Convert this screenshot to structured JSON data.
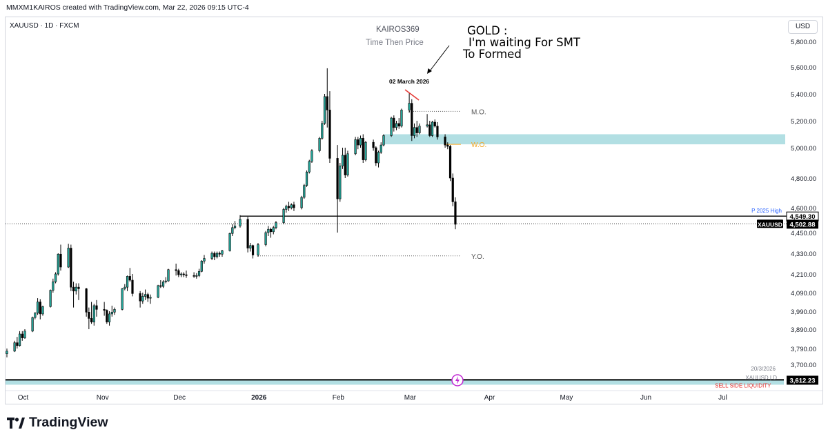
{
  "header": {
    "text": "MMXM1KAIROS created with TradingView.com, Mar 22, 2026 09:15 UTC-4"
  },
  "symbol_line": "XAUUSD · 1D · FXCM",
  "currency_button": "USD",
  "annotation": {
    "title": "KAIROS369",
    "subtitle": "Time Then Price",
    "note_line1": "GOLD :",
    "note_line2": "I'm waiting For SMT",
    "note_line3": "To Formed",
    "date_label": "02 March 2026"
  },
  "levels": {
    "mo": "M.O.",
    "wo": "W.O.",
    "yo": "Y.O.",
    "p2025": "P 2025 High",
    "ssl": "SELL SIDE LIQUIDITY"
  },
  "price_tags": {
    "p2025_value": "4,549.30",
    "xau_label": "XAUUSD",
    "xau_value": "4,502.88",
    "ssl_value": "3,612.23"
  },
  "bottom_info": {
    "date": "20/3/2026",
    "symbol": "XAUUSD | D"
  },
  "brand": {
    "name": "TradingView"
  },
  "colors": {
    "up": "#26a69a",
    "down": "#000000",
    "ob": "#b2dfe3",
    "wo": "#f5a623",
    "p2025": "#2962ff",
    "red": "#e53935"
  },
  "chart_data": {
    "type": "candlestick",
    "title": "KAIROS369",
    "subtitle": "Time Then Price",
    "y_ticks": [
      3700,
      3790,
      3890,
      3990,
      4090,
      4210,
      4330,
      4450,
      4600,
      4800,
      5000,
      5200,
      5400,
      5600,
      5800
    ],
    "y_tick_labels": [
      "3,700.00",
      "3,790.00",
      "3,890.00",
      "3,990.00",
      "4,090.00",
      "4,210.00",
      "4,330.00",
      "4,450.00",
      "4,600.00",
      "4,800.00",
      "5,000.00",
      "5,200.00",
      "5,400.00",
      "5,600.00",
      "5,800.00"
    ],
    "x_ticks": [
      "Oct",
      "Nov",
      "Dec",
      "2026",
      "Feb",
      "Mar",
      "Apr",
      "May",
      "Jun",
      "Jul"
    ],
    "x_tick_dates": [
      "2025-10-01",
      "2025-11-01",
      "2025-12-01",
      "2026-01-01",
      "2026-02-01",
      "2026-03-01",
      "2026-04-01",
      "2026-05-01",
      "2026-06-01",
      "2026-07-01"
    ],
    "start_date": "2025-09-26",
    "levels": {
      "monthly_open": 5270,
      "weekly_open": 5025,
      "yearly_open": 4315,
      "prev_2025_high": 4549.3,
      "last_price": 4502.88,
      "sell_side_liquidity": 3612.23,
      "order_block": [
        5025,
        5100
      ]
    },
    "candles": [
      [
        "2025-09-26",
        3760,
        3790,
        3740,
        3775
      ],
      [
        "2025-09-29",
        3775,
        3830,
        3770,
        3820
      ],
      [
        "2025-09-30",
        3820,
        3850,
        3790,
        3805
      ],
      [
        "2025-10-01",
        3805,
        3880,
        3800,
        3865
      ],
      [
        "2025-10-02",
        3865,
        3880,
        3830,
        3845
      ],
      [
        "2025-10-03",
        3845,
        3890,
        3840,
        3880
      ],
      [
        "2025-10-06",
        3880,
        3960,
        3875,
        3955
      ],
      [
        "2025-10-07",
        3955,
        3985,
        3945,
        3980
      ],
      [
        "2025-10-08",
        3980,
        4060,
        3970,
        4040
      ],
      [
        "2025-10-09",
        4040,
        4055,
        3945,
        3975
      ],
      [
        "2025-10-10",
        3975,
        4020,
        3965,
        4015
      ],
      [
        "2025-10-13",
        4015,
        4110,
        4010,
        4105
      ],
      [
        "2025-10-14",
        4105,
        4180,
        4090,
        4160
      ],
      [
        "2025-10-15",
        4160,
        4220,
        4150,
        4210
      ],
      [
        "2025-10-16",
        4210,
        4330,
        4200,
        4325
      ],
      [
        "2025-10-17",
        4325,
        4380,
        4230,
        4250
      ],
      [
        "2025-10-20",
        4250,
        4385,
        4245,
        4360
      ],
      [
        "2025-10-21",
        4360,
        4380,
        4100,
        4125
      ],
      [
        "2025-10-22",
        4125,
        4160,
        4010,
        4100
      ],
      [
        "2025-10-23",
        4100,
        4150,
        4080,
        4125
      ],
      [
        "2025-10-24",
        4125,
        4150,
        4050,
        4115
      ],
      [
        "2025-10-27",
        4115,
        4120,
        3960,
        3985
      ],
      [
        "2025-10-28",
        3985,
        4010,
        3890,
        3950
      ],
      [
        "2025-10-29",
        3950,
        4040,
        3920,
        3930
      ],
      [
        "2025-10-30",
        3930,
        4030,
        3910,
        4020
      ],
      [
        "2025-10-31",
        4020,
        4050,
        3960,
        4000
      ],
      [
        "2025-11-03",
        4000,
        4040,
        3965,
        3995
      ],
      [
        "2025-11-04",
        3995,
        4000,
        3920,
        3930
      ],
      [
        "2025-11-05",
        3930,
        3990,
        3910,
        3975
      ],
      [
        "2025-11-06",
        3975,
        4020,
        3960,
        3985
      ],
      [
        "2025-11-07",
        3985,
        4010,
        3970,
        4000
      ],
      [
        "2025-11-10",
        4000,
        4120,
        3995,
        4115
      ],
      [
        "2025-11-11",
        4115,
        4145,
        4105,
        4125
      ],
      [
        "2025-11-12",
        4125,
        4200,
        4100,
        4195
      ],
      [
        "2025-11-13",
        4195,
        4245,
        4160,
        4170
      ],
      [
        "2025-11-14",
        4170,
        4210,
        4070,
        4085
      ],
      [
        "2025-11-17",
        4085,
        4100,
        4010,
        4045
      ],
      [
        "2025-11-18",
        4045,
        4090,
        4030,
        4070
      ],
      [
        "2025-11-19",
        4070,
        4110,
        4050,
        4080
      ],
      [
        "2025-11-20",
        4080,
        4090,
        4040,
        4060
      ],
      [
        "2025-11-21",
        4060,
        4080,
        4030,
        4065
      ],
      [
        "2025-11-24",
        4065,
        4140,
        4060,
        4135
      ],
      [
        "2025-11-25",
        4135,
        4170,
        4120,
        4130
      ],
      [
        "2025-11-26",
        4130,
        4170,
        4120,
        4160
      ],
      [
        "2025-11-27",
        4160,
        4190,
        4150,
        4165
      ],
      [
        "2025-11-28",
        4165,
        4240,
        4160,
        4235
      ],
      [
        "2025-12-01",
        4235,
        4270,
        4200,
        4230
      ],
      [
        "2025-12-02",
        4230,
        4240,
        4190,
        4205
      ],
      [
        "2025-12-03",
        4205,
        4220,
        4190,
        4210
      ],
      [
        "2025-12-04",
        4210,
        4220,
        4190,
        4205
      ],
      [
        "2025-12-05",
        4205,
        4230,
        4185,
        4200
      ],
      [
        "2025-12-08",
        4200,
        4220,
        4185,
        4195
      ],
      [
        "2025-12-09",
        4195,
        4215,
        4180,
        4200
      ],
      [
        "2025-12-10",
        4200,
        4240,
        4190,
        4225
      ],
      [
        "2025-12-11",
        4225,
        4290,
        4220,
        4285
      ],
      [
        "2025-12-12",
        4285,
        4320,
        4270,
        4300
      ],
      [
        "2025-12-15",
        4300,
        4340,
        4290,
        4330
      ],
      [
        "2025-12-16",
        4330,
        4340,
        4290,
        4310
      ],
      [
        "2025-12-17",
        4310,
        4340,
        4300,
        4330
      ],
      [
        "2025-12-18",
        4330,
        4340,
        4310,
        4325
      ],
      [
        "2025-12-19",
        4325,
        4350,
        4310,
        4345
      ],
      [
        "2025-12-22",
        4345,
        4450,
        4340,
        4445
      ],
      [
        "2025-12-23",
        4445,
        4500,
        4430,
        4480
      ],
      [
        "2025-12-24",
        4480,
        4520,
        4470,
        4490
      ],
      [
        "2025-12-26",
        4490,
        4555,
        4480,
        4530
      ],
      [
        "2025-12-29",
        4530,
        4545,
        4335,
        4360
      ],
      [
        "2025-12-30",
        4360,
        4390,
        4340,
        4375
      ],
      [
        "2025-12-31",
        4375,
        4380,
        4300,
        4320
      ],
      [
        "2026-01-02",
        4320,
        4390,
        4310,
        4380
      ],
      [
        "2026-01-05",
        4380,
        4460,
        4370,
        4450
      ],
      [
        "2026-01-06",
        4450,
        4490,
        4430,
        4470
      ],
      [
        "2026-01-07",
        4470,
        4480,
        4420,
        4455
      ],
      [
        "2026-01-08",
        4455,
        4490,
        4440,
        4480
      ],
      [
        "2026-01-09",
        4480,
        4520,
        4470,
        4510
      ],
      [
        "2026-01-12",
        4510,
        4600,
        4500,
        4590
      ],
      [
        "2026-01-13",
        4590,
        4620,
        4570,
        4610
      ],
      [
        "2026-01-14",
        4610,
        4640,
        4580,
        4600
      ],
      [
        "2026-01-15",
        4600,
        4630,
        4590,
        4620
      ],
      [
        "2026-01-16",
        4620,
        4640,
        4580,
        4600
      ],
      [
        "2026-01-19",
        4600,
        4680,
        4590,
        4670
      ],
      [
        "2026-01-20",
        4670,
        4760,
        4660,
        4750
      ],
      [
        "2026-01-21",
        4750,
        4850,
        4740,
        4840
      ],
      [
        "2026-01-22",
        4840,
        4920,
        4830,
        4910
      ],
      [
        "2026-01-23",
        4910,
        4990,
        4900,
        4980
      ],
      [
        "2026-01-26",
        4980,
        5080,
        4970,
        5070
      ],
      [
        "2026-01-27",
        5070,
        5200,
        5060,
        5180
      ],
      [
        "2026-01-28",
        5180,
        5400,
        5170,
        5380
      ],
      [
        "2026-01-29",
        5380,
        5590,
        5150,
        5280
      ],
      [
        "2026-01-30",
        5280,
        5420,
        4900,
        4930
      ],
      [
        "2026-02-02",
        4930,
        5020,
        4450,
        4660
      ],
      [
        "2026-02-03",
        4660,
        4900,
        4640,
        4880
      ],
      [
        "2026-02-04",
        4880,
        5000,
        4860,
        4950
      ],
      [
        "2026-02-05",
        4950,
        5000,
        4800,
        4820
      ],
      [
        "2026-02-06",
        4820,
        4980,
        4810,
        4960
      ],
      [
        "2026-02-09",
        4960,
        5080,
        4950,
        5060
      ],
      [
        "2026-02-10",
        5060,
        5080,
        4990,
        5020
      ],
      [
        "2026-02-11",
        5020,
        5090,
        5000,
        5070
      ],
      [
        "2026-02-12",
        5070,
        5100,
        4900,
        4920
      ],
      [
        "2026-02-13",
        4920,
        5050,
        4910,
        5040
      ],
      [
        "2026-02-16",
        5040,
        5060,
        4980,
        5000
      ],
      [
        "2026-02-17",
        5000,
        5010,
        4880,
        4900
      ],
      [
        "2026-02-18",
        4900,
        4980,
        4870,
        4970
      ],
      [
        "2026-02-19",
        4970,
        5040,
        4960,
        5020
      ],
      [
        "2026-02-20",
        5020,
        5100,
        5010,
        5090
      ],
      [
        "2026-02-23",
        5090,
        5230,
        5080,
        5220
      ],
      [
        "2026-02-24",
        5220,
        5240,
        5120,
        5150
      ],
      [
        "2026-02-25",
        5150,
        5200,
        5130,
        5180
      ],
      [
        "2026-02-26",
        5180,
        5220,
        5140,
        5160
      ],
      [
        "2026-02-27",
        5160,
        5290,
        5150,
        5280
      ],
      [
        "2026-03-02",
        5280,
        5410,
        5260,
        5330
      ],
      [
        "2026-03-03",
        5330,
        5360,
        5050,
        5090
      ],
      [
        "2026-03-04",
        5090,
        5180,
        5070,
        5150
      ],
      [
        "2026-03-05",
        5150,
        5200,
        5080,
        5110
      ],
      [
        "2026-03-06",
        5110,
        5180,
        5100,
        5160
      ],
      [
        "2026-03-09",
        5160,
        5250,
        5150,
        5170
      ],
      [
        "2026-03-10",
        5170,
        5200,
        5080,
        5090
      ],
      [
        "2026-03-11",
        5090,
        5200,
        5080,
        5190
      ],
      [
        "2026-03-12",
        5190,
        5210,
        5150,
        5160
      ],
      [
        "2026-03-13",
        5160,
        5190,
        5060,
        5080
      ],
      [
        "2026-03-16",
        5080,
        5100,
        5000,
        5020
      ],
      [
        "2026-03-17",
        5020,
        5040,
        4990,
        5010
      ],
      [
        "2026-03-18",
        5010,
        5020,
        4780,
        4800
      ],
      [
        "2026-03-19",
        4800,
        4830,
        4610,
        4640
      ],
      [
        "2026-03-20",
        4640,
        4670,
        4470,
        4500
      ]
    ]
  }
}
